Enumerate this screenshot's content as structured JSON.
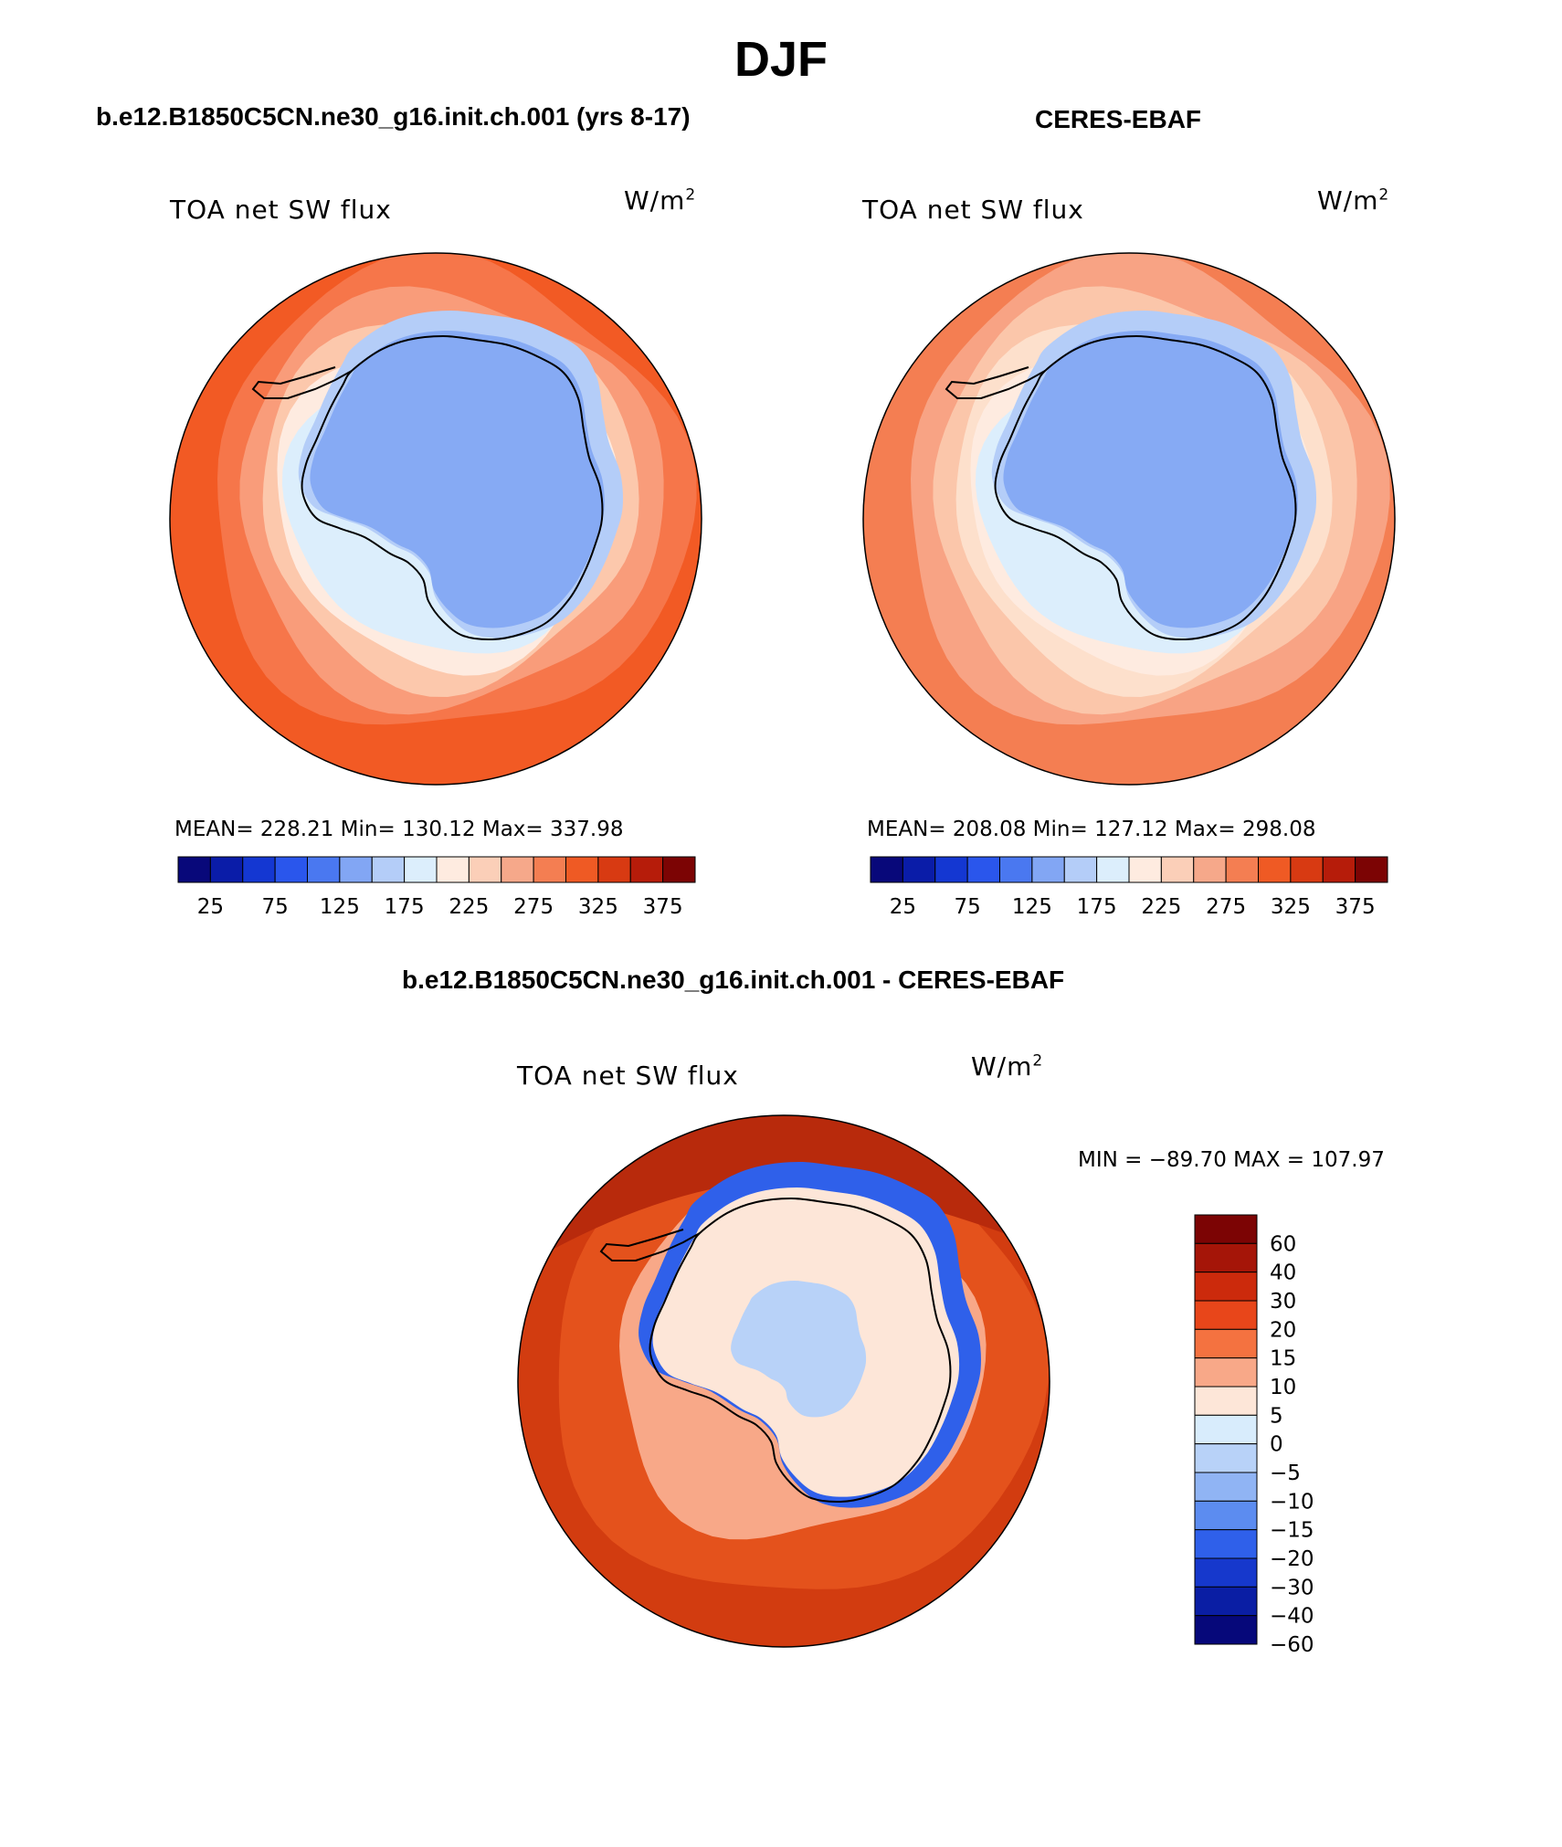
{
  "figure": {
    "title": "DJF"
  },
  "panels": [
    {
      "id": "model",
      "title": "b.e12.B1850C5CN.ne30_g16.init.ch.001 (yrs 8-17)",
      "variable": "TOA net SW flux",
      "units": "W/m",
      "units_sup": "2",
      "stats": "MEAN= 228.21   Min= 130.12   Max= 337.98",
      "colorbar": {
        "tick_labels": [
          "25",
          "75",
          "125",
          "175",
          "225",
          "275",
          "325",
          "375"
        ],
        "colors": [
          "#08087a",
          "#0a1ca8",
          "#1437d2",
          "#2a56ec",
          "#4a78f0",
          "#82a6f4",
          "#b4cdf8",
          "#dceefc",
          "#feebe0",
          "#fbcfb8",
          "#f6a88a",
          "#f47e52",
          "#ef5a24",
          "#d83a12",
          "#b61c0a",
          "#7c0404"
        ]
      },
      "map_levels": [
        "#f25a24",
        "#f6764a",
        "#f99c7a",
        "#fcc8ac",
        "#feebe0",
        "#dceefc",
        "#b4cdf8",
        "#86aaf4"
      ]
    },
    {
      "id": "obs",
      "title": "CERES-EBAF",
      "variable": "TOA net SW flux",
      "units": "W/m",
      "units_sup": "2",
      "stats": "MEAN= 208.08   Min= 127.12   Max= 298.08",
      "colorbar": {
        "tick_labels": [
          "25",
          "75",
          "125",
          "175",
          "225",
          "275",
          "325",
          "375"
        ],
        "colors": [
          "#08087a",
          "#0a1ca8",
          "#1437d2",
          "#2a56ec",
          "#4a78f0",
          "#82a6f4",
          "#b4cdf8",
          "#dceefc",
          "#feebe0",
          "#fbcfb8",
          "#f6a88a",
          "#f47e52",
          "#ef5a24",
          "#d83a12",
          "#b61c0a",
          "#7c0404"
        ]
      },
      "map_levels": [
        "#f47e52",
        "#f8a384",
        "#fbc6aa",
        "#fde0cc",
        "#feebe0",
        "#dceefc",
        "#b4cdf8",
        "#86aaf4"
      ]
    }
  ],
  "difference": {
    "title": "b.e12.B1850C5CN.ne30_g16.init.ch.001 - CERES-EBAF",
    "variable": "TOA net SW flux",
    "units": "W/m",
    "units_sup": "2",
    "stats": "MIN = −89.70 MAX = 107.97",
    "colorbar": {
      "tick_labels": [
        "60",
        "40",
        "30",
        "20",
        "15",
        "10",
        "5",
        "0",
        "−5",
        "−10",
        "−15",
        "−20",
        "−30",
        "−40",
        "−60"
      ],
      "colors": [
        "#7c0404",
        "#a51508",
        "#cc2a0c",
        "#e8461a",
        "#f47240",
        "#f8a888",
        "#fde6d8",
        "#d8ecfc",
        "#b8d2f8",
        "#90b4f4",
        "#5c8cf0",
        "#2f60ea",
        "#1638cc",
        "#0a1ea4",
        "#06087a"
      ]
    },
    "map_levels": [
      "#b82a0c",
      "#d23c10",
      "#e4521c",
      "#f8a888",
      "#fde6d8",
      "#b8d2f8",
      "#2f60ea"
    ]
  }
}
